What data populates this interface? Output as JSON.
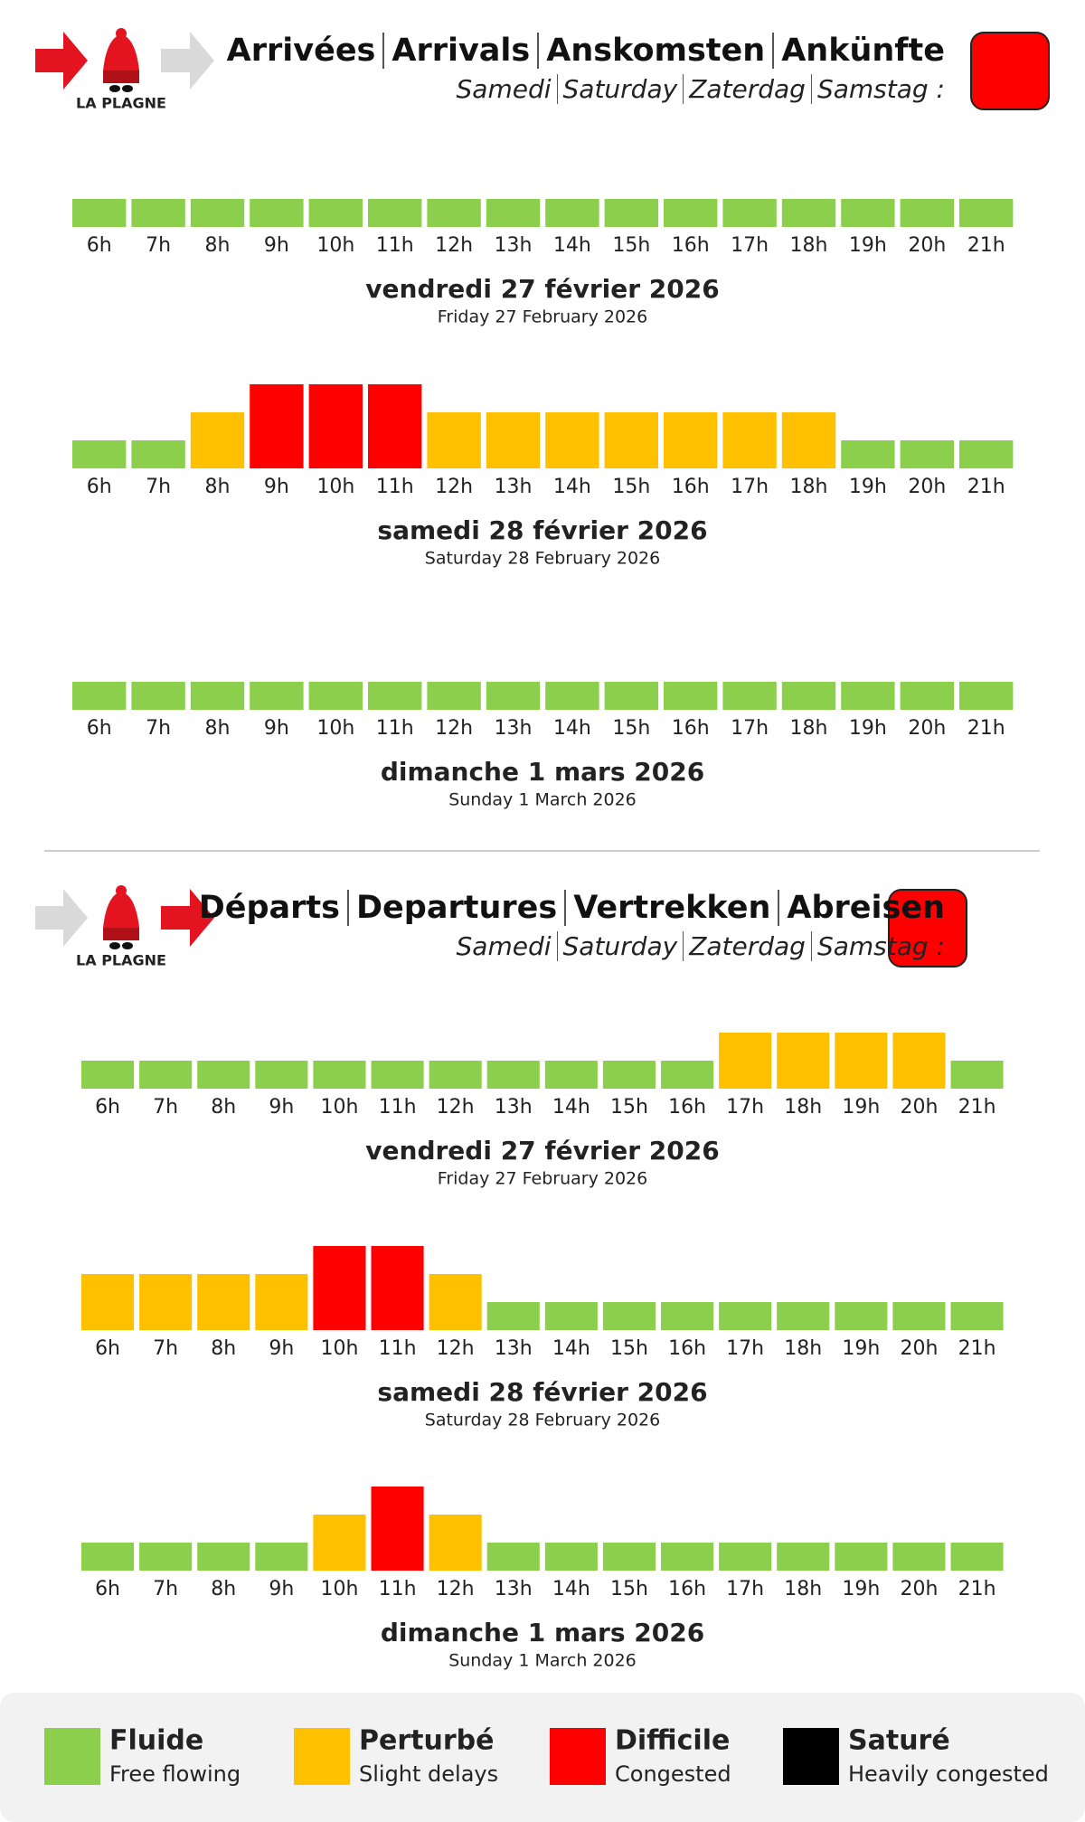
{
  "logo": "LA PLAGNE",
  "hours": [
    "6h",
    "7h",
    "8h",
    "9h",
    "10h",
    "11h",
    "12h",
    "13h",
    "14h",
    "15h",
    "16h",
    "17h",
    "18h",
    "19h",
    "20h",
    "21h"
  ],
  "legend": [
    {
      "label": "Fluide",
      "sublabel": "Free flowing",
      "color": "#8ccf4d"
    },
    {
      "label": "Perturbé",
      "sublabel": "Slight delays",
      "color": "#ffc000"
    },
    {
      "label": "Difficile",
      "sublabel": "Congested",
      "color": "#ff0000"
    },
    {
      "label": "Saturé",
      "sublabel": "Heavily congested",
      "color": "#000000"
    }
  ],
  "sections": [
    {
      "title": [
        "Arrivées",
        "Arrivals",
        "Anskomsten",
        "Ankünfte"
      ],
      "subtitle": [
        "Samedi",
        "Saturday",
        "Zaterdag",
        "Samstag :"
      ],
      "status_level": 3,
      "days": [
        {
          "date": "vendredi 27 février 2026",
          "date_en": "Friday 27 February 2026",
          "levels": [
            1,
            1,
            1,
            1,
            1,
            1,
            1,
            1,
            1,
            1,
            1,
            1,
            1,
            1,
            1,
            1
          ]
        },
        {
          "date": "samedi 28 février 2026",
          "date_en": "Saturday 28 February 2026",
          "levels": [
            1,
            1,
            2,
            3,
            3,
            3,
            2,
            2,
            2,
            2,
            2,
            2,
            2,
            1,
            1,
            1
          ]
        },
        {
          "date": "dimanche 1 mars 2026",
          "date_en": "Sunday 1 March 2026",
          "levels": [
            1,
            1,
            1,
            1,
            1,
            1,
            1,
            1,
            1,
            1,
            1,
            1,
            1,
            1,
            1,
            1
          ]
        }
      ]
    },
    {
      "title": [
        "Départs",
        "Departures",
        "Vertrekken",
        "Abreisen"
      ],
      "subtitle": [
        "Samedi",
        "Saturday",
        "Zaterdag",
        "Samstag :"
      ],
      "status_level": 3,
      "days": [
        {
          "date": "vendredi 27 février 2026",
          "date_en": "Friday 27 February 2026",
          "levels": [
            1,
            1,
            1,
            1,
            1,
            1,
            1,
            1,
            1,
            1,
            1,
            2,
            2,
            2,
            2,
            1
          ]
        },
        {
          "date": "samedi 28 février 2026",
          "date_en": "Saturday 28 February 2026",
          "levels": [
            2,
            2,
            2,
            2,
            3,
            3,
            2,
            1,
            1,
            1,
            1,
            1,
            1,
            1,
            1,
            1
          ]
        },
        {
          "date": "dimanche 1 mars 2026",
          "date_en": "Sunday 1 March 2026",
          "levels": [
            1,
            1,
            1,
            1,
            2,
            3,
            2,
            1,
            1,
            1,
            1,
            1,
            1,
            1,
            1,
            1
          ]
        }
      ]
    }
  ]
}
